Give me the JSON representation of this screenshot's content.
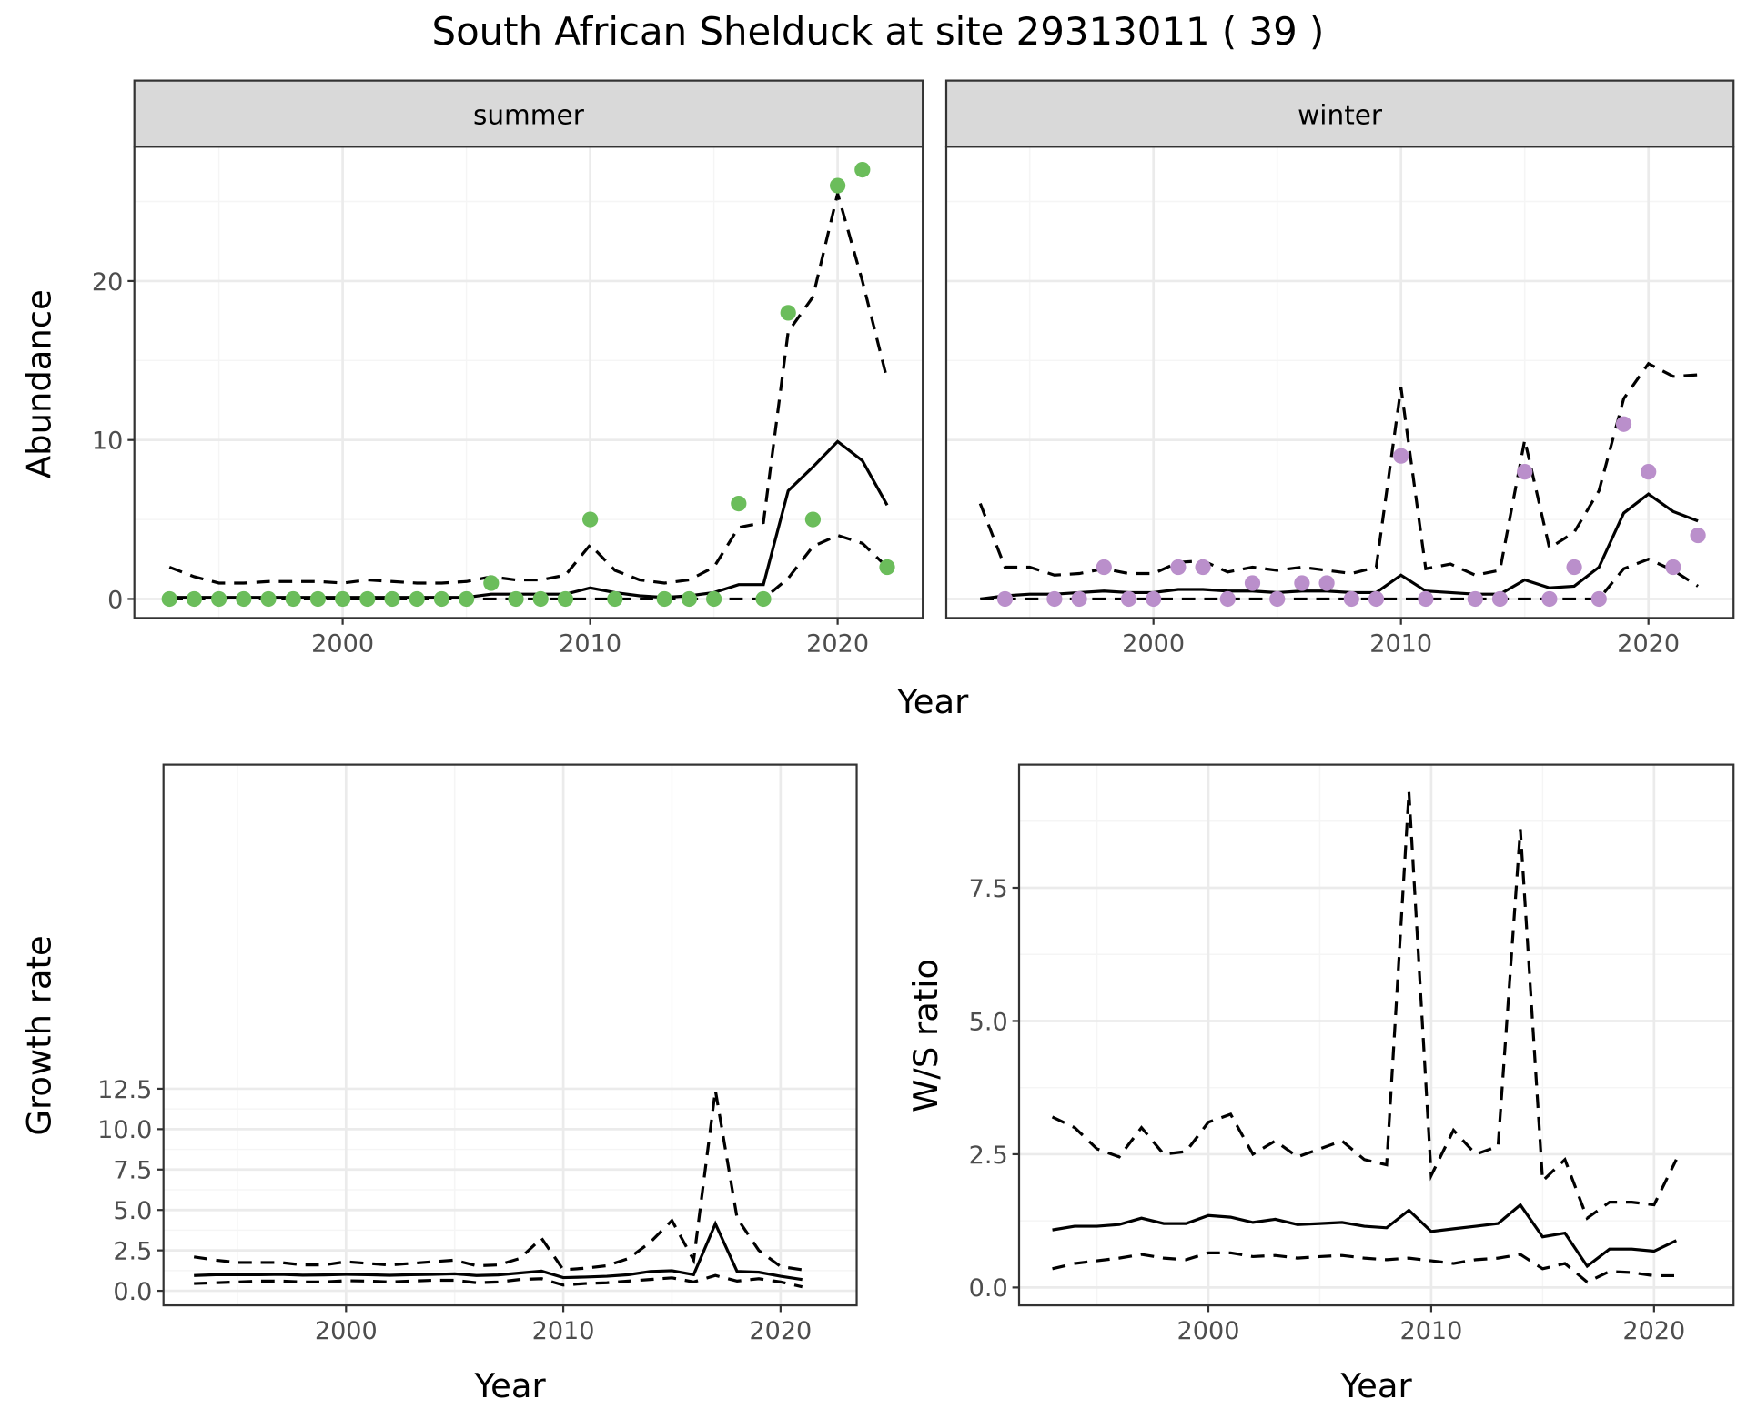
{
  "title": "South African Shelduck at site 29313011 ( 39 )",
  "colors": {
    "summer": "#6BBD5B",
    "winter": "#BA8FCB",
    "line": "#000000",
    "grid": "#EBEBEB"
  },
  "chart_data": [
    {
      "type": "line+scatter",
      "panel": "summer",
      "strip_label": "summer",
      "xlabel": "Year",
      "ylabel": "Abundance",
      "x_ticks": [
        2000,
        2010,
        2020
      ],
      "y_ticks": [
        0,
        10,
        20
      ],
      "y_tick_labels": [
        "0",
        "10",
        "20"
      ],
      "x_tick_labels": [
        "2000",
        "2010",
        "2020"
      ],
      "points": {
        "x": [
          1993,
          1994,
          1995,
          1996,
          1997,
          1998,
          1999,
          2000,
          2001,
          2002,
          2003,
          2004,
          2005,
          2006,
          2007,
          2008,
          2009,
          2010,
          2011,
          2013,
          2014,
          2015,
          2016,
          2017,
          2018,
          2019,
          2020,
          2021,
          2022
        ],
        "y": [
          0,
          0,
          0,
          0,
          0,
          0,
          0,
          0,
          0,
          0,
          0,
          0,
          0,
          1,
          0,
          0,
          0,
          5,
          0,
          0,
          0,
          0,
          6,
          0,
          18,
          5,
          26,
          27,
          2
        ]
      },
      "years": [
        1993,
        1994,
        1995,
        1996,
        1997,
        1998,
        1999,
        2000,
        2001,
        2002,
        2003,
        2004,
        2005,
        2006,
        2007,
        2008,
        2009,
        2010,
        2011,
        2012,
        2013,
        2014,
        2015,
        2016,
        2017,
        2018,
        2019,
        2020,
        2021,
        2022
      ],
      "mean": [
        0.1,
        0.1,
        0.1,
        0.1,
        0.1,
        0.1,
        0.1,
        0.1,
        0.1,
        0.1,
        0.1,
        0.1,
        0.1,
        0.3,
        0.3,
        0.3,
        0.3,
        0.7,
        0.4,
        0.2,
        0.1,
        0.2,
        0.4,
        0.9,
        0.9,
        6.8,
        8.3,
        9.9,
        8.7,
        5.9
      ],
      "upper": [
        2.0,
        1.4,
        1.0,
        1.0,
        1.1,
        1.1,
        1.1,
        1.0,
        1.2,
        1.1,
        1.0,
        1.0,
        1.1,
        1.4,
        1.2,
        1.2,
        1.5,
        3.4,
        1.8,
        1.2,
        1.0,
        1.2,
        2.0,
        4.5,
        4.8,
        16.8,
        19.0,
        25.5,
        20.0,
        13.8
      ],
      "lower": [
        0,
        0,
        0,
        0,
        0,
        0,
        0,
        0,
        0,
        0,
        0,
        0,
        0,
        0,
        0,
        0,
        0,
        0,
        0,
        0,
        0,
        0,
        0,
        0,
        0,
        1.3,
        3.3,
        4.0,
        3.5,
        2.0
      ]
    },
    {
      "type": "line+scatter",
      "panel": "winter",
      "strip_label": "winter",
      "xlabel": "Year",
      "ylabel": "Abundance",
      "x_ticks": [
        2000,
        2010,
        2020
      ],
      "y_ticks": [
        0,
        10,
        20
      ],
      "x_tick_labels": [
        "2000",
        "2010",
        "2020"
      ],
      "points": {
        "x": [
          1994,
          1996,
          1997,
          1998,
          1999,
          2000,
          2001,
          2002,
          2003,
          2004,
          2005,
          2006,
          2007,
          2008,
          2009,
          2010,
          2011,
          2013,
          2014,
          2015,
          2016,
          2017,
          2018,
          2019,
          2020,
          2021,
          2022
        ],
        "y": [
          0,
          0,
          0,
          2,
          0,
          0,
          2,
          2,
          0,
          1,
          0,
          1,
          1,
          0,
          0,
          9,
          0,
          0,
          0,
          8,
          0,
          2,
          0,
          11,
          8,
          2,
          4
        ]
      },
      "years": [
        1993,
        1994,
        1995,
        1996,
        1997,
        1998,
        1999,
        2000,
        2001,
        2002,
        2003,
        2004,
        2005,
        2006,
        2007,
        2008,
        2009,
        2010,
        2011,
        2012,
        2013,
        2014,
        2015,
        2016,
        2017,
        2018,
        2019,
        2020,
        2021,
        2022
      ],
      "mean": [
        0,
        0.2,
        0.3,
        0.3,
        0.4,
        0.5,
        0.4,
        0.4,
        0.6,
        0.6,
        0.5,
        0.5,
        0.4,
        0.5,
        0.5,
        0.4,
        0.4,
        1.5,
        0.5,
        0.4,
        0.3,
        0.3,
        1.2,
        0.7,
        0.8,
        2.0,
        5.4,
        6.6,
        5.5,
        4.9
      ],
      "upper": [
        6.0,
        2.0,
        2.0,
        1.5,
        1.6,
        1.9,
        1.6,
        1.6,
        2.3,
        2.4,
        1.7,
        2.0,
        1.8,
        2.0,
        1.8,
        1.6,
        2.0,
        13.3,
        1.9,
        2.2,
        1.5,
        1.8,
        10.0,
        3.2,
        4.2,
        6.8,
        12.6,
        14.8,
        14.0,
        14.1
      ],
      "lower": [
        0,
        0,
        0,
        0,
        0,
        0,
        0,
        0,
        0,
        0,
        0,
        0,
        0,
        0,
        0,
        0,
        0,
        0,
        0,
        0,
        0,
        0,
        0,
        0,
        0,
        0,
        1.9,
        2.5,
        1.8,
        0.8
      ]
    },
    {
      "type": "line",
      "panel": "growth",
      "xlabel": "Year",
      "ylabel": "Growth rate",
      "x_ticks": [
        2000,
        2010,
        2020
      ],
      "x_tick_labels": [
        "2000",
        "2010",
        "2020"
      ],
      "y_ticks": [
        0,
        2.5,
        5,
        7.5,
        10,
        12.5
      ],
      "y_tick_labels": [
        "0.0",
        "2.5",
        "5.0",
        "7.5",
        "10.0",
        "12.5"
      ],
      "years": [
        1993,
        1994,
        1995,
        1996,
        1997,
        1998,
        1999,
        2000,
        2001,
        2002,
        2003,
        2004,
        2005,
        2006,
        2007,
        2008,
        2009,
        2010,
        2011,
        2012,
        2013,
        2014,
        2015,
        2016,
        2017,
        2018,
        2019,
        2020,
        2021
      ],
      "mean": [
        0.95,
        1.0,
        1.0,
        1.0,
        1.02,
        0.97,
        0.98,
        1.02,
        1.0,
        0.96,
        1.0,
        1.02,
        1.05,
        0.95,
        0.98,
        1.1,
        1.22,
        0.82,
        0.85,
        0.9,
        1.0,
        1.2,
        1.25,
        1.0,
        4.15,
        1.2,
        1.15,
        0.9,
        0.7
      ],
      "upper": [
        2.1,
        1.9,
        1.75,
        1.75,
        1.75,
        1.6,
        1.6,
        1.8,
        1.7,
        1.6,
        1.7,
        1.8,
        1.9,
        1.55,
        1.6,
        2.0,
        3.25,
        1.3,
        1.4,
        1.55,
        2.0,
        3.0,
        4.35,
        1.9,
        12.4,
        4.5,
        2.5,
        1.5,
        1.3
      ],
      "lower": [
        0.45,
        0.5,
        0.55,
        0.6,
        0.6,
        0.55,
        0.55,
        0.62,
        0.6,
        0.55,
        0.6,
        0.65,
        0.65,
        0.5,
        0.55,
        0.7,
        0.75,
        0.35,
        0.45,
        0.5,
        0.6,
        0.7,
        0.8,
        0.55,
        0.95,
        0.6,
        0.75,
        0.55,
        0.25
      ]
    },
    {
      "type": "line",
      "panel": "ws",
      "xlabel": "Year",
      "ylabel": "W/S ratio",
      "x_ticks": [
        2000,
        2010,
        2020
      ],
      "x_tick_labels": [
        "2000",
        "2010",
        "2020"
      ],
      "y_ticks": [
        0,
        2.5,
        5,
        7.5
      ],
      "y_tick_labels": [
        "0.0",
        "2.5",
        "5.0",
        "7.5"
      ],
      "years": [
        1993,
        1994,
        1995,
        1996,
        1997,
        1998,
        1999,
        2000,
        2001,
        2002,
        2003,
        2004,
        2005,
        2006,
        2007,
        2008,
        2009,
        2010,
        2011,
        2012,
        2013,
        2014,
        2015,
        2016,
        2017,
        2018,
        2019,
        2020,
        2021
      ],
      "mean": [
        1.08,
        1.15,
        1.15,
        1.18,
        1.3,
        1.2,
        1.2,
        1.35,
        1.32,
        1.22,
        1.28,
        1.18,
        1.2,
        1.22,
        1.15,
        1.12,
        1.45,
        1.05,
        1.1,
        1.15,
        1.2,
        1.55,
        0.95,
        1.02,
        0.4,
        0.72,
        0.72,
        0.68,
        0.88
      ],
      "upper": [
        3.2,
        3.0,
        2.6,
        2.45,
        3.0,
        2.5,
        2.55,
        3.1,
        3.25,
        2.5,
        2.75,
        2.45,
        2.6,
        2.75,
        2.4,
        2.3,
        9.3,
        2.1,
        2.95,
        2.5,
        2.65,
        8.6,
        2.0,
        2.4,
        1.3,
        1.6,
        1.6,
        1.55,
        2.4
      ],
      "lower": [
        0.35,
        0.45,
        0.5,
        0.55,
        0.62,
        0.55,
        0.52,
        0.65,
        0.65,
        0.58,
        0.6,
        0.55,
        0.58,
        0.6,
        0.55,
        0.52,
        0.55,
        0.5,
        0.45,
        0.52,
        0.55,
        0.62,
        0.35,
        0.45,
        0.1,
        0.3,
        0.28,
        0.22,
        0.22
      ]
    }
  ]
}
